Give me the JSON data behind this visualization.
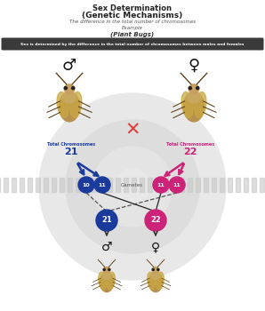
{
  "title_line1": "Sex Determination",
  "title_line2": "(Genetic Mechanisms)",
  "subtitle1": "The difference in the total number of chromosomes",
  "subtitle2": "Example",
  "subtitle3": "(Plant Bugs)",
  "banner_text": "Sex is determined by the difference in the total number of chromosomes between males and females",
  "banner_bg": "#3a3a3a",
  "banner_text_color": "#ffffff",
  "male_color": "#1a3a9c",
  "female_color": "#cc2277",
  "male_total": "21",
  "female_total": "22",
  "male_gamete_labels": [
    "10",
    "11"
  ],
  "female_gamete_labels": [
    "11",
    "11"
  ],
  "offspring_male": "21",
  "offspring_female": "22",
  "gametes_label": "Gametes",
  "label_total_chrom": "Total Chromosomes",
  "bg_color": "#ffffff",
  "circle_bg1": "#e0e0e0",
  "circle_bg2": "#d0d0d0",
  "circle_bg3": "#e0e0e0",
  "stripe_color": "#c8c8c8",
  "bug_body": "#b89050",
  "bug_head": "#c8a060",
  "bug_dark": "#5a3a10",
  "bug_wing": "#c8a840"
}
